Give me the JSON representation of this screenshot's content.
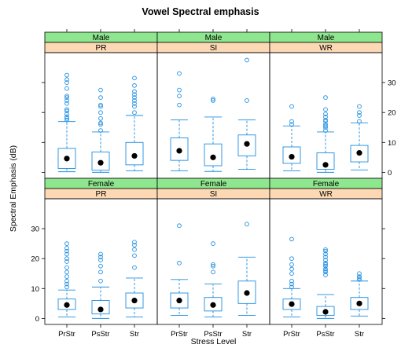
{
  "chart_data": {
    "type": "boxplot",
    "title": "Vowel Spectral emphasis",
    "xlabel": "Stress Level",
    "ylabel": "Spectral Emphasis (dB)",
    "categories": [
      "PrStr",
      "PsStr",
      "Str"
    ],
    "ylim": [
      -2,
      40
    ],
    "yticks": [
      0,
      10,
      20,
      30
    ],
    "strip_colors": {
      "gender": "#8ee68e",
      "level": "#fcd9b4"
    },
    "box_color": "#1f8fe0",
    "panels": [
      {
        "gender": "Male",
        "level": "PR",
        "row": 0,
        "col": 0,
        "boxes": [
          {
            "category": "PrStr",
            "whisker_low": 0.2,
            "q1": 1.3,
            "median": 4.6,
            "q3": 8.0,
            "whisker_high": 17.0,
            "outliers": [
              17.5,
              18.0,
              18.6,
              19.5,
              20.5,
              21.0,
              23.0,
              24.0,
              25.0,
              25.5,
              28.0,
              30.0,
              31.0,
              32.5
            ]
          },
          {
            "category": "PsStr",
            "whisker_low": 0.0,
            "q1": 0.7,
            "median": 3.2,
            "q3": 6.8,
            "whisker_high": 13.5,
            "outliers": [
              14.0,
              16.0,
              16.5,
              18.0,
              20.0,
              22.0,
              22.5,
              25.0,
              27.5
            ]
          },
          {
            "category": "Str",
            "whisker_low": 0.5,
            "q1": 2.5,
            "median": 5.5,
            "q3": 10.0,
            "whisker_high": 19.0,
            "outliers": [
              20.0,
              22.0,
              23.0,
              24.0,
              25.0,
              26.0,
              27.0,
              29.0,
              31.5
            ]
          }
        ]
      },
      {
        "gender": "Male",
        "level": "SI",
        "row": 0,
        "col": 1,
        "boxes": [
          {
            "category": "PrStr",
            "whisker_low": 0.5,
            "q1": 4.0,
            "median": 7.2,
            "q3": 11.5,
            "whisker_high": 17.5,
            "outliers": [
              22.5,
              25.5,
              27.5,
              33.0
            ]
          },
          {
            "category": "PsStr",
            "whisker_low": 0.3,
            "q1": 2.2,
            "median": 5.0,
            "q3": 9.5,
            "whisker_high": 18.5,
            "outliers": [
              24.0,
              24.5
            ]
          },
          {
            "category": "Str",
            "whisker_low": 1.0,
            "q1": 5.5,
            "median": 9.5,
            "q3": 12.5,
            "whisker_high": 17.5,
            "outliers": [
              24.0,
              37.5
            ]
          }
        ]
      },
      {
        "gender": "Male",
        "level": "WR",
        "row": 0,
        "col": 2,
        "boxes": [
          {
            "category": "PrStr",
            "whisker_low": 0.5,
            "q1": 3.0,
            "median": 5.2,
            "q3": 8.5,
            "whisker_high": 15.5,
            "outliers": [
              16.0,
              17.0,
              22.0
            ]
          },
          {
            "category": "PsStr",
            "whisker_low": 0.0,
            "q1": 1.0,
            "median": 2.5,
            "q3": 6.5,
            "whisker_high": 13.5,
            "outliers": [
              14.0,
              15.0,
              15.5,
              16.0,
              17.0,
              17.5,
              18.5,
              19.5,
              21.0,
              25.0
            ]
          },
          {
            "category": "Str",
            "whisker_low": 0.8,
            "q1": 3.5,
            "median": 6.5,
            "q3": 9.0,
            "whisker_high": 16.5,
            "outliers": [
              17.0,
              19.0,
              20.0,
              22.0
            ]
          }
        ]
      },
      {
        "gender": "Female",
        "level": "PR",
        "row": 1,
        "col": 0,
        "boxes": [
          {
            "category": "PrStr",
            "whisker_low": 0.5,
            "q1": 3.0,
            "median": 4.5,
            "q3": 6.5,
            "whisker_high": 9.5,
            "outliers": [
              10.5,
              11.5,
              12.5,
              14.0,
              15.5,
              17.0,
              19.0,
              20.0,
              21.5,
              22.5,
              23.5,
              25.0
            ]
          },
          {
            "category": "PsStr",
            "whisker_low": 0.0,
            "q1": 1.5,
            "median": 3.0,
            "q3": 6.0,
            "whisker_high": 10.5,
            "outliers": [
              12.5,
              15.5,
              17.5,
              19.5,
              20.5,
              21.5
            ]
          },
          {
            "category": "Str",
            "whisker_low": 0.5,
            "q1": 3.5,
            "median": 6.0,
            "q3": 8.5,
            "whisker_high": 13.5,
            "outliers": [
              17.0,
              21.0,
              23.0,
              24.5,
              25.5
            ]
          }
        ]
      },
      {
        "gender": "Female",
        "level": "SI",
        "row": 1,
        "col": 1,
        "boxes": [
          {
            "category": "PrStr",
            "whisker_low": 1.0,
            "q1": 3.5,
            "median": 6.0,
            "q3": 8.5,
            "whisker_high": 13.0,
            "outliers": [
              18.5,
              31.0
            ]
          },
          {
            "category": "PsStr",
            "whisker_low": 0.5,
            "q1": 2.5,
            "median": 4.5,
            "q3": 7.0,
            "whisker_high": 11.5,
            "outliers": [
              15.5,
              17.5,
              18.0,
              25.0
            ]
          },
          {
            "category": "Str",
            "whisker_low": 1.0,
            "q1": 5.0,
            "median": 8.5,
            "q3": 12.5,
            "whisker_high": 20.5,
            "outliers": [
              31.5
            ]
          }
        ]
      },
      {
        "gender": "Female",
        "level": "WR",
        "row": 1,
        "col": 2,
        "boxes": [
          {
            "category": "PrStr",
            "whisker_low": 0.5,
            "q1": 3.0,
            "median": 4.8,
            "q3": 6.5,
            "whisker_high": 10.0,
            "outliers": [
              10.5,
              11.5,
              12.5,
              15.0,
              16.5,
              18.0,
              20.0,
              26.5
            ]
          },
          {
            "category": "PsStr",
            "whisker_low": 0.0,
            "q1": 1.0,
            "median": 2.2,
            "q3": 4.0,
            "whisker_high": 8.0,
            "outliers": [
              14.5,
              15.5,
              16.0,
              16.5,
              17.5,
              18.0,
              18.5,
              19.5,
              20.5,
              21.5,
              22.5,
              23.0
            ]
          },
          {
            "category": "Str",
            "whisker_low": 0.8,
            "q1": 3.0,
            "median": 5.0,
            "q3": 7.0,
            "whisker_high": 12.5,
            "outliers": [
              13.0,
              13.5,
              14.0,
              15.0
            ]
          }
        ]
      }
    ]
  }
}
